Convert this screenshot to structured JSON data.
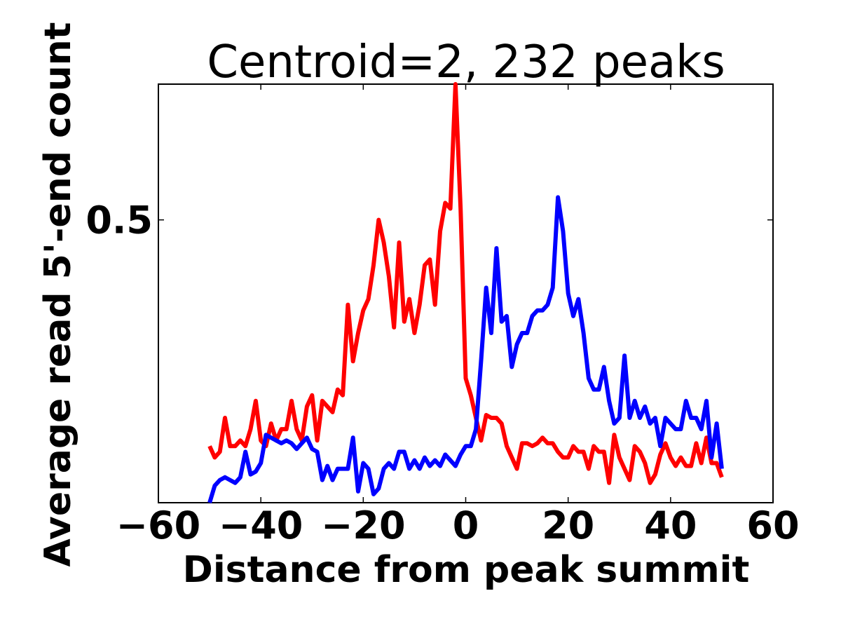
{
  "chart_data": {
    "type": "line",
    "title": "Centroid=2, 232 peaks",
    "xlabel": "Distance from peak summit",
    "ylabel": "Average read 5'-end count",
    "xlim": [
      -60,
      60
    ],
    "ylim": [
      0,
      0.74
    ],
    "xticks": [
      -60,
      -40,
      -20,
      0,
      20,
      40,
      60
    ],
    "xtick_labels": [
      "−60",
      "−40",
      "−20",
      "0",
      "20",
      "40",
      "60"
    ],
    "yticks": [
      0.5
    ],
    "ytick_labels": [
      "0.5"
    ],
    "grid": false,
    "legend": "none",
    "x": [
      -50,
      -49,
      -48,
      -47,
      -46,
      -45,
      -44,
      -43,
      -42,
      -41,
      -40,
      -39,
      -38,
      -37,
      -36,
      -35,
      -34,
      -33,
      -32,
      -31,
      -30,
      -29,
      -28,
      -27,
      -26,
      -25,
      -24,
      -23,
      -22,
      -21,
      -20,
      -19,
      -18,
      -17,
      -16,
      -15,
      -14,
      -13,
      -12,
      -11,
      -10,
      -9,
      -8,
      -7,
      -6,
      -5,
      -4,
      -3,
      -2,
      -1,
      0,
      1,
      2,
      3,
      4,
      5,
      6,
      7,
      8,
      9,
      10,
      11,
      12,
      13,
      14,
      15,
      16,
      17,
      18,
      19,
      20,
      21,
      22,
      23,
      24,
      25,
      26,
      27,
      28,
      29,
      30,
      31,
      32,
      33,
      34,
      35,
      36,
      37,
      38,
      39,
      40,
      41,
      42,
      43,
      44,
      45,
      46,
      47,
      48,
      49,
      50
    ],
    "series": [
      {
        "color": "#ff0000",
        "values": [
          0.1,
          0.08,
          0.09,
          0.15,
          0.1,
          0.1,
          0.11,
          0.1,
          0.13,
          0.18,
          0.11,
          0.1,
          0.14,
          0.11,
          0.13,
          0.13,
          0.18,
          0.13,
          0.11,
          0.17,
          0.19,
          0.11,
          0.18,
          0.17,
          0.16,
          0.2,
          0.19,
          0.35,
          0.25,
          0.3,
          0.34,
          0.36,
          0.42,
          0.5,
          0.46,
          0.4,
          0.31,
          0.46,
          0.32,
          0.36,
          0.3,
          0.35,
          0.42,
          0.43,
          0.35,
          0.48,
          0.53,
          0.52,
          0.74,
          0.52,
          0.22,
          0.19,
          0.15,
          0.11,
          0.155,
          0.15,
          0.15,
          0.14,
          0.1,
          0.08,
          0.06,
          0.105,
          0.105,
          0.1,
          0.105,
          0.115,
          0.105,
          0.105,
          0.09,
          0.08,
          0.08,
          0.1,
          0.09,
          0.09,
          0.06,
          0.1,
          0.09,
          0.09,
          0.035,
          0.12,
          0.08,
          0.06,
          0.04,
          0.1,
          0.09,
          0.07,
          0.035,
          0.05,
          0.085,
          0.105,
          0.08,
          0.065,
          0.08,
          0.065,
          0.065,
          0.105,
          0.07,
          0.115,
          0.07,
          0.07,
          0.045
        ]
      },
      {
        "color": "#0000ff",
        "values": [
          0.0,
          0.03,
          0.04,
          0.045,
          0.04,
          0.035,
          0.045,
          0.09,
          0.05,
          0.055,
          0.07,
          0.12,
          0.115,
          0.11,
          0.105,
          0.11,
          0.105,
          0.095,
          0.105,
          0.115,
          0.095,
          0.09,
          0.04,
          0.065,
          0.04,
          0.06,
          0.06,
          0.06,
          0.115,
          0.02,
          0.07,
          0.06,
          0.015,
          0.025,
          0.06,
          0.07,
          0.06,
          0.09,
          0.09,
          0.06,
          0.075,
          0.06,
          0.08,
          0.065,
          0.075,
          0.065,
          0.085,
          0.075,
          0.065,
          0.085,
          0.1,
          0.1,
          0.13,
          0.25,
          0.38,
          0.3,
          0.45,
          0.32,
          0.33,
          0.24,
          0.28,
          0.3,
          0.3,
          0.33,
          0.34,
          0.34,
          0.35,
          0.38,
          0.54,
          0.48,
          0.37,
          0.33,
          0.36,
          0.3,
          0.22,
          0.2,
          0.2,
          0.24,
          0.18,
          0.14,
          0.15,
          0.26,
          0.15,
          0.18,
          0.15,
          0.17,
          0.14,
          0.15,
          0.1,
          0.15,
          0.14,
          0.13,
          0.13,
          0.18,
          0.15,
          0.15,
          0.13,
          0.18,
          0.08,
          0.14,
          0.06
        ]
      }
    ]
  }
}
